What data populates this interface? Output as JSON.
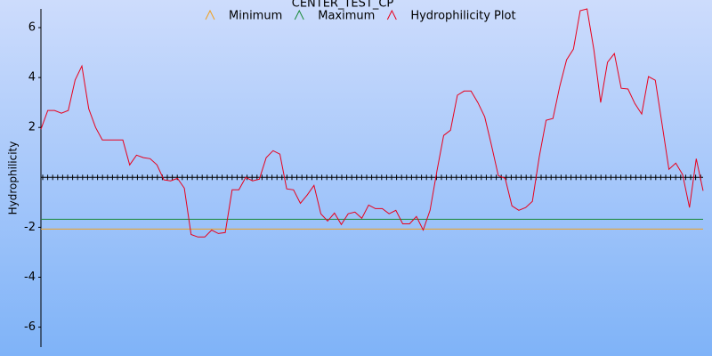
{
  "chart_data": {
    "type": "line",
    "title": "CENTER_TEST_CP",
    "y_label": "Hydrophilicity",
    "ylim": [
      -6.8,
      6.75
    ],
    "yticks": [
      6,
      4,
      2,
      -2,
      -4,
      -6
    ],
    "series": [
      {
        "name": "Minimum",
        "color": "#f0a020",
        "values": [
          -2.07
        ]
      },
      {
        "name": "Maximum",
        "color": "#1a8a3a",
        "values": [
          -1.68
        ]
      },
      {
        "name": "Hydrophilicity Plot",
        "color": "#e8001c",
        "values": [
          1.93,
          2.68,
          2.68,
          2.57,
          2.68,
          3.9,
          4.46,
          2.75,
          2.0,
          1.5,
          1.5,
          1.5,
          1.5,
          0.5,
          0.89,
          0.79,
          0.75,
          0.5,
          -0.1,
          -0.14,
          -0.04,
          -0.43,
          -2.29,
          -2.39,
          -2.39,
          -2.11,
          -2.25,
          -2.21,
          -0.5,
          -0.5,
          0.0,
          -0.14,
          -0.07,
          0.79,
          1.07,
          0.93,
          -0.46,
          -0.5,
          -1.04,
          -0.71,
          -0.32,
          -1.46,
          -1.75,
          -1.43,
          -1.89,
          -1.46,
          -1.39,
          -1.64,
          -1.11,
          -1.25,
          -1.25,
          -1.46,
          -1.32,
          -1.86,
          -1.86,
          -1.57,
          -2.11,
          -1.32,
          0.25,
          1.68,
          1.89,
          3.29,
          3.46,
          3.46,
          3.0,
          2.43,
          1.29,
          0.07,
          -0.04,
          -1.14,
          -1.32,
          -1.21,
          -0.96,
          0.82,
          2.29,
          2.36,
          3.64,
          4.71,
          5.14,
          6.68,
          6.75,
          5.11,
          3.0,
          4.61,
          4.96,
          3.57,
          3.54,
          2.96,
          2.54,
          4.04,
          3.89,
          2.11,
          0.32,
          0.57,
          0.11,
          -1.21,
          0.75,
          -0.54
        ]
      }
    ]
  }
}
